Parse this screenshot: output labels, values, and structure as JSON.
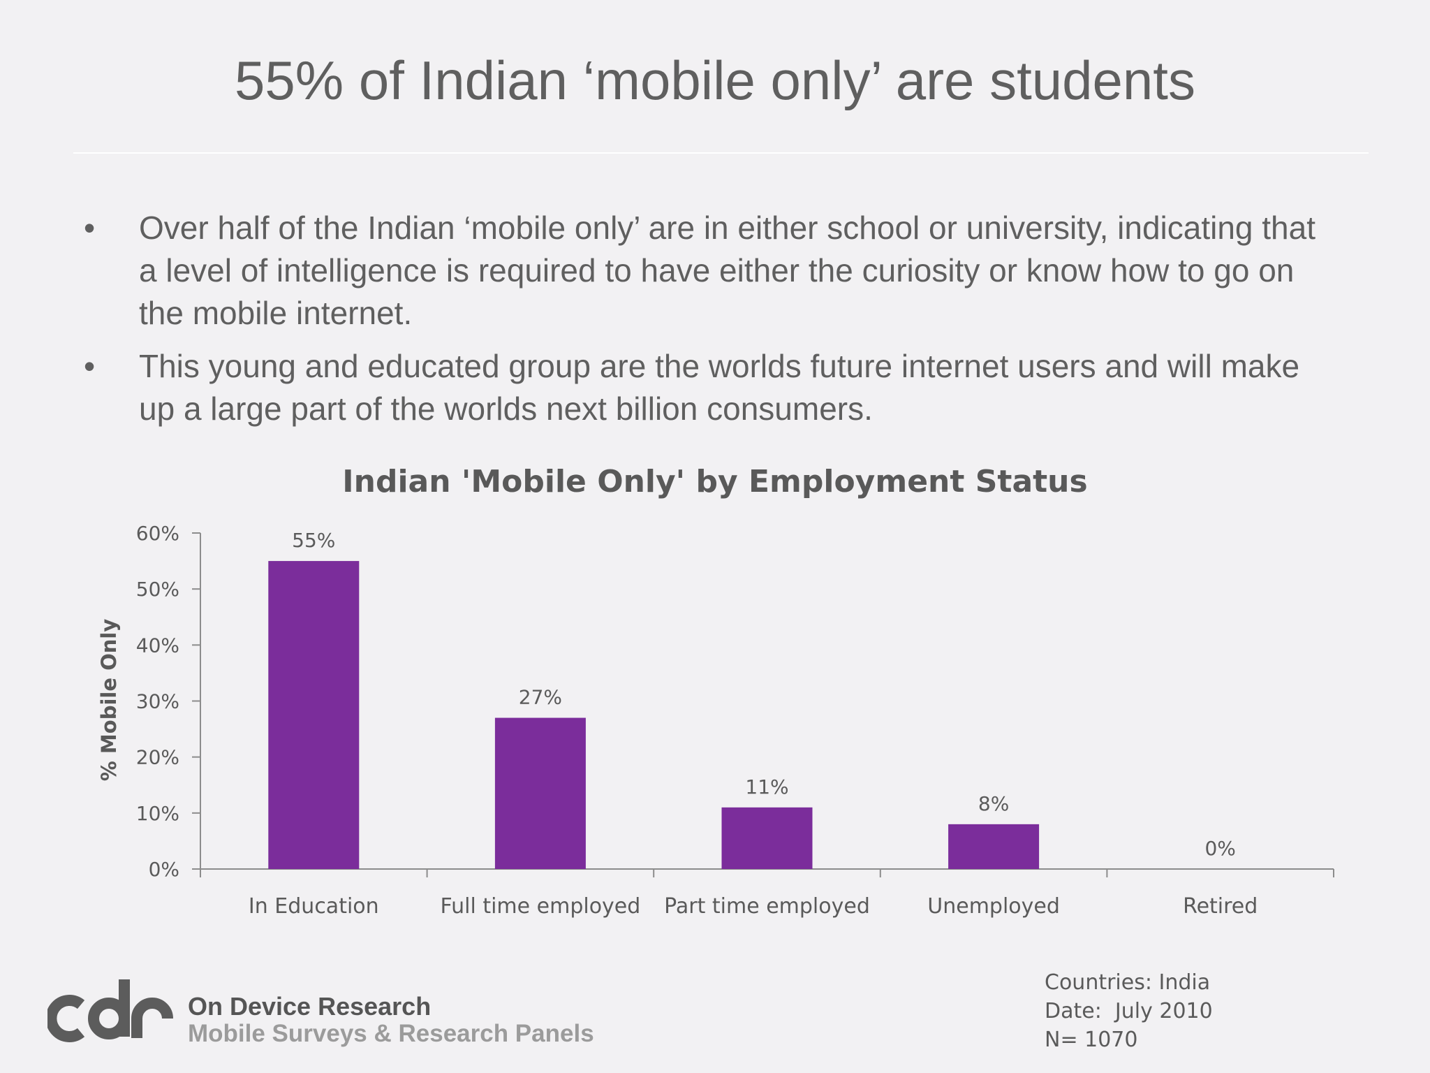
{
  "slide": {
    "title": "55% of Indian ‘mobile only’ are students",
    "bullet_symbol": "•",
    "bullets": [
      "Over half of the Indian ‘mobile only’ are in either school or university, indicating that a level of intelligence is required to have either the curiosity or know how to go on the mobile internet.",
      "This young and educated group are the worlds future internet users and will make up a large part of the worlds next billion consumers."
    ]
  },
  "chart_data": {
    "type": "bar",
    "title": "Indian 'Mobile Only' by Employment Status",
    "xlabel": "",
    "ylabel": "% Mobile Only",
    "categories": [
      "In Education",
      "Full time employed",
      "Part time employed",
      "Unemployed",
      "Retired"
    ],
    "values": [
      55,
      27,
      11,
      8,
      0
    ],
    "data_labels": [
      "55%",
      "27%",
      "11%",
      "8%",
      "0%"
    ],
    "y_ticks": [
      0,
      10,
      20,
      30,
      40,
      50,
      60
    ],
    "y_tick_labels": [
      "0%",
      "10%",
      "20%",
      "30%",
      "40%",
      "50%",
      "60%"
    ],
    "ylim": [
      0,
      60
    ],
    "grid": false,
    "legend": "none",
    "bar_color": "#7b2d9b"
  },
  "footer": {
    "logo_icon": "cdr-logo",
    "company_name": "On Device Research",
    "company_tagline": "Mobile Surveys & Research Panels",
    "meta": [
      "Countries: India",
      "Date:  July 2010",
      "N= 1070"
    ]
  }
}
